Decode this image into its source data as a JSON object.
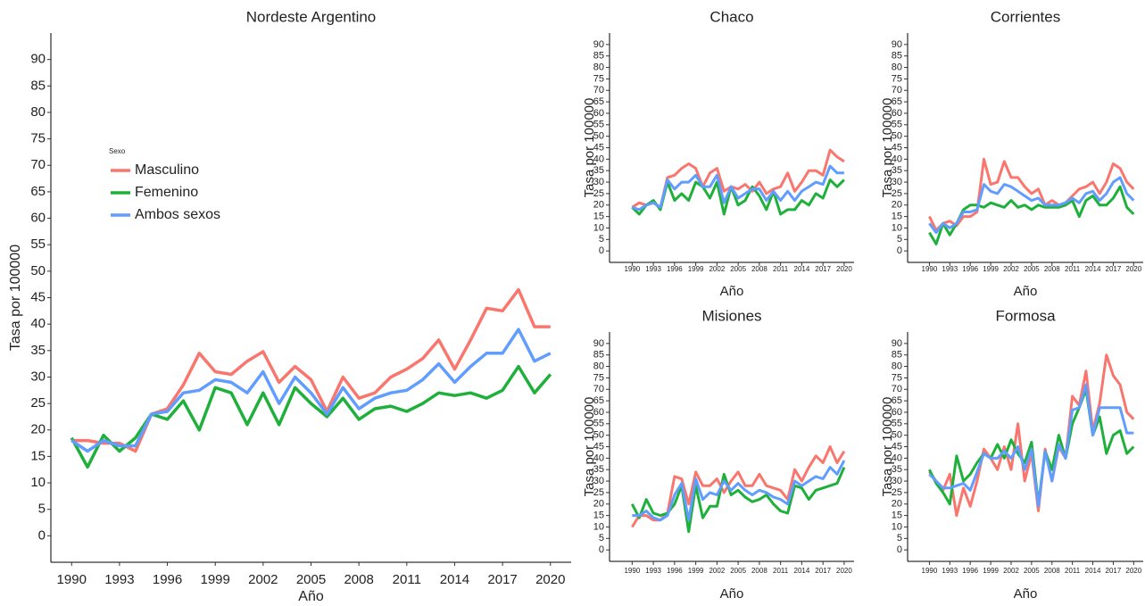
{
  "chart_data": [
    {
      "type": "line",
      "title": "Nordeste Argentino",
      "xlabel": "Año",
      "ylabel": "Tasa por 100000",
      "legend_title": "Sexo",
      "x": [
        1990,
        1991,
        1992,
        1993,
        1994,
        1995,
        1996,
        1997,
        1998,
        1999,
        2000,
        2001,
        2002,
        2003,
        2004,
        2005,
        2006,
        2007,
        2008,
        2009,
        2010,
        2011,
        2012,
        2013,
        2014,
        2015,
        2016,
        2017,
        2018,
        2019,
        2020
      ],
      "xlim": [
        1988.7,
        2021.3
      ],
      "xticks": [
        1990,
        1993,
        1996,
        1999,
        2002,
        2005,
        2008,
        2011,
        2014,
        2017,
        2020
      ],
      "ylim": [
        -5,
        95
      ],
      "yticks": [
        0,
        5,
        10,
        15,
        20,
        25,
        30,
        35,
        40,
        45,
        50,
        55,
        60,
        65,
        70,
        75,
        80,
        85,
        90
      ],
      "series": [
        {
          "name": "Masculino",
          "color": "#f8766d",
          "values": [
            18,
            18,
            17.5,
            17.5,
            16,
            23,
            24,
            28.5,
            34.5,
            31,
            30.5,
            33,
            34.8,
            29,
            32,
            29.5,
            23.5,
            30,
            26,
            27,
            30,
            31.5,
            33.5,
            37,
            31.5,
            37,
            43,
            42.5,
            46.5,
            39.5,
            39.5
          ]
        },
        {
          "name": "Femenino",
          "color": "#1fb03c",
          "values": [
            18.5,
            13,
            19,
            16,
            18.5,
            23,
            22,
            25.5,
            20,
            28,
            27,
            21,
            27,
            21,
            28,
            25,
            22.5,
            26,
            22,
            24,
            24.5,
            23.5,
            25,
            27,
            26.5,
            27,
            26,
            27.5,
            32,
            27,
            30.5
          ]
        },
        {
          "name": "Ambos sexos",
          "color": "#619cff",
          "values": [
            18,
            16,
            18,
            17,
            17,
            23,
            23.5,
            27,
            27.5,
            29.5,
            29,
            27,
            31,
            25,
            30,
            27,
            23,
            28,
            24,
            26,
            27,
            27.5,
            29.5,
            32.5,
            29,
            32,
            34.5,
            34.5,
            39,
            33,
            34.5
          ]
        }
      ]
    },
    {
      "type": "line",
      "title": "Chaco",
      "xlabel": "Año",
      "ylabel": "Tasa por 100000",
      "x": [
        1990,
        1991,
        1992,
        1993,
        1994,
        1995,
        1996,
        1997,
        1998,
        1999,
        2000,
        2001,
        2002,
        2003,
        2004,
        2005,
        2006,
        2007,
        2008,
        2009,
        2010,
        2011,
        2012,
        2013,
        2014,
        2015,
        2016,
        2017,
        2018,
        2019,
        2020
      ],
      "xlim": [
        1986.8,
        2021.4
      ],
      "xticks": [
        1990,
        1993,
        1996,
        1999,
        2002,
        2005,
        2008,
        2011,
        2014,
        2017,
        2020
      ],
      "ylim": [
        -5,
        95
      ],
      "yticks": [
        0,
        5,
        10,
        15,
        20,
        25,
        30,
        35,
        40,
        45,
        50,
        55,
        60,
        65,
        70,
        75,
        80,
        85,
        90
      ],
      "series": [
        {
          "color": "#f8766d",
          "values": [
            19,
            21,
            20,
            21,
            19,
            32,
            33,
            36,
            38,
            36,
            28,
            34,
            36,
            26,
            28,
            27,
            29,
            26,
            30,
            25,
            27,
            28,
            34,
            26,
            30,
            35,
            35,
            33,
            44,
            41,
            39
          ]
        },
        {
          "color": "#1fb03c",
          "values": [
            19,
            16,
            20,
            22,
            18,
            30,
            22,
            25,
            22,
            30,
            28,
            23,
            30,
            16,
            28,
            20,
            22,
            28,
            24,
            18,
            26,
            16,
            18,
            18,
            22,
            20,
            25,
            23,
            31,
            28,
            31
          ]
        },
        {
          "color": "#619cff",
          "values": [
            19,
            18,
            20,
            21,
            19,
            31,
            27,
            30,
            30,
            33,
            28,
            28,
            33,
            21,
            28,
            23,
            25,
            27,
            27,
            22,
            26,
            22,
            26,
            22,
            26,
            28,
            30,
            29,
            37,
            34,
            34
          ]
        }
      ]
    },
    {
      "type": "line",
      "title": "Corrientes",
      "xlabel": "Año",
      "ylabel": "Tasa por 100000",
      "x": [
        1990,
        1991,
        1992,
        1993,
        1994,
        1995,
        1996,
        1997,
        1998,
        1999,
        2000,
        2001,
        2002,
        2003,
        2004,
        2005,
        2006,
        2007,
        2008,
        2009,
        2010,
        2011,
        2012,
        2013,
        2014,
        2015,
        2016,
        2017,
        2018,
        2019,
        2020
      ],
      "xlim": [
        1986.8,
        2021.4
      ],
      "xticks": [
        1990,
        1993,
        1996,
        1999,
        2002,
        2005,
        2008,
        2011,
        2014,
        2017,
        2020
      ],
      "ylim": [
        -5,
        95
      ],
      "yticks": [
        0,
        5,
        10,
        15,
        20,
        25,
        30,
        35,
        40,
        45,
        50,
        55,
        60,
        65,
        70,
        75,
        80,
        85,
        90
      ],
      "series": [
        {
          "color": "#f8766d",
          "values": [
            15,
            9,
            12,
            13,
            11,
            15,
            15,
            17,
            40,
            29,
            30,
            39,
            32,
            32,
            28,
            25,
            27,
            20,
            22,
            20,
            21,
            24,
            27,
            28,
            30,
            25,
            30,
            38,
            36,
            30,
            27
          ]
        },
        {
          "color": "#1fb03c",
          "values": [
            8,
            3,
            12,
            7,
            12,
            18,
            20,
            20,
            19,
            21,
            20,
            19,
            22,
            19,
            20,
            18,
            20,
            19,
            19,
            19,
            20,
            22,
            15,
            22,
            24,
            20,
            20,
            23,
            28,
            19,
            16
          ]
        },
        {
          "color": "#619cff",
          "values": [
            12,
            8,
            12,
            10,
            12,
            17,
            17,
            18,
            29,
            26,
            25,
            29,
            28,
            26,
            24,
            22,
            23,
            20,
            20,
            20,
            21,
            23,
            21,
            25,
            26,
            22,
            25,
            30,
            32,
            25,
            22
          ]
        }
      ]
    },
    {
      "type": "line",
      "title": "Misiones",
      "xlabel": "Año",
      "ylabel": "Tasa por 100000",
      "x": [
        1990,
        1991,
        1992,
        1993,
        1994,
        1995,
        1996,
        1997,
        1998,
        1999,
        2000,
        2001,
        2002,
        2003,
        2004,
        2005,
        2006,
        2007,
        2008,
        2009,
        2010,
        2011,
        2012,
        2013,
        2014,
        2015,
        2016,
        2017,
        2018,
        2019,
        2020
      ],
      "xlim": [
        1986.8,
        2021.4
      ],
      "xticks": [
        1990,
        1993,
        1996,
        1999,
        2002,
        2005,
        2008,
        2011,
        2014,
        2017,
        2020
      ],
      "ylim": [
        -5,
        95
      ],
      "yticks": [
        0,
        5,
        10,
        15,
        20,
        25,
        30,
        35,
        40,
        45,
        50,
        55,
        60,
        65,
        70,
        75,
        80,
        85,
        90
      ],
      "series": [
        {
          "color": "#f8766d",
          "values": [
            10,
            15,
            15,
            13,
            13,
            16,
            32,
            31,
            20,
            34,
            28,
            28,
            31,
            25,
            30,
            34,
            28,
            28,
            33,
            28,
            27,
            26,
            22,
            35,
            30,
            36,
            41,
            38,
            45,
            38,
            43
          ]
        },
        {
          "color": "#1fb03c",
          "values": [
            20,
            14,
            22,
            16,
            15,
            16,
            20,
            28,
            8,
            28,
            14,
            19,
            19,
            33,
            24,
            26,
            23,
            21,
            22,
            24,
            20,
            17,
            16,
            28,
            27,
            22,
            26,
            27,
            28,
            29,
            36
          ]
        },
        {
          "color": "#619cff",
          "values": [
            15,
            15,
            17,
            14,
            13,
            15,
            24,
            29,
            13,
            31,
            22,
            25,
            24,
            30,
            26,
            29,
            26,
            24,
            26,
            25,
            23,
            22,
            20,
            30,
            28,
            30,
            32,
            31,
            36,
            33,
            39
          ]
        }
      ]
    },
    {
      "type": "line",
      "title": "Formosa",
      "xlabel": "Año",
      "ylabel": "Tasa por 100000",
      "x": [
        1990,
        1991,
        1992,
        1993,
        1994,
        1995,
        1996,
        1997,
        1998,
        1999,
        2000,
        2001,
        2002,
        2003,
        2004,
        2005,
        2006,
        2007,
        2008,
        2009,
        2010,
        2011,
        2012,
        2013,
        2014,
        2015,
        2016,
        2017,
        2018,
        2019,
        2020
      ],
      "xlim": [
        1986.8,
        2021.4
      ],
      "xticks": [
        1990,
        1993,
        1996,
        1999,
        2002,
        2005,
        2008,
        2011,
        2014,
        2017,
        2020
      ],
      "ylim": [
        -5,
        95
      ],
      "yticks": [
        0,
        5,
        10,
        15,
        20,
        25,
        30,
        35,
        40,
        45,
        50,
        55,
        60,
        65,
        70,
        75,
        80,
        85,
        90
      ],
      "series": [
        {
          "color": "#f8766d",
          "values": [
            34,
            30,
            26,
            33,
            15,
            27,
            19,
            30,
            44,
            40,
            35,
            45,
            35,
            55,
            30,
            42,
            17,
            44,
            30,
            45,
            40,
            67,
            63,
            78,
            52,
            64,
            85,
            76,
            72,
            60,
            57
          ]
        },
        {
          "color": "#1fb03c",
          "values": [
            35,
            29,
            25,
            20,
            41,
            30,
            33,
            38,
            42,
            40,
            46,
            40,
            48,
            42,
            38,
            47,
            20,
            43,
            35,
            50,
            40,
            55,
            62,
            70,
            50,
            58,
            42,
            50,
            52,
            42,
            45
          ]
        },
        {
          "color": "#619cff",
          "values": [
            33,
            30,
            27,
            27,
            28,
            29,
            26,
            34,
            42,
            40,
            40,
            43,
            40,
            45,
            35,
            44,
            19,
            43,
            30,
            46,
            40,
            61,
            62,
            72,
            50,
            62,
            62,
            62,
            62,
            51,
            51
          ]
        }
      ]
    }
  ]
}
